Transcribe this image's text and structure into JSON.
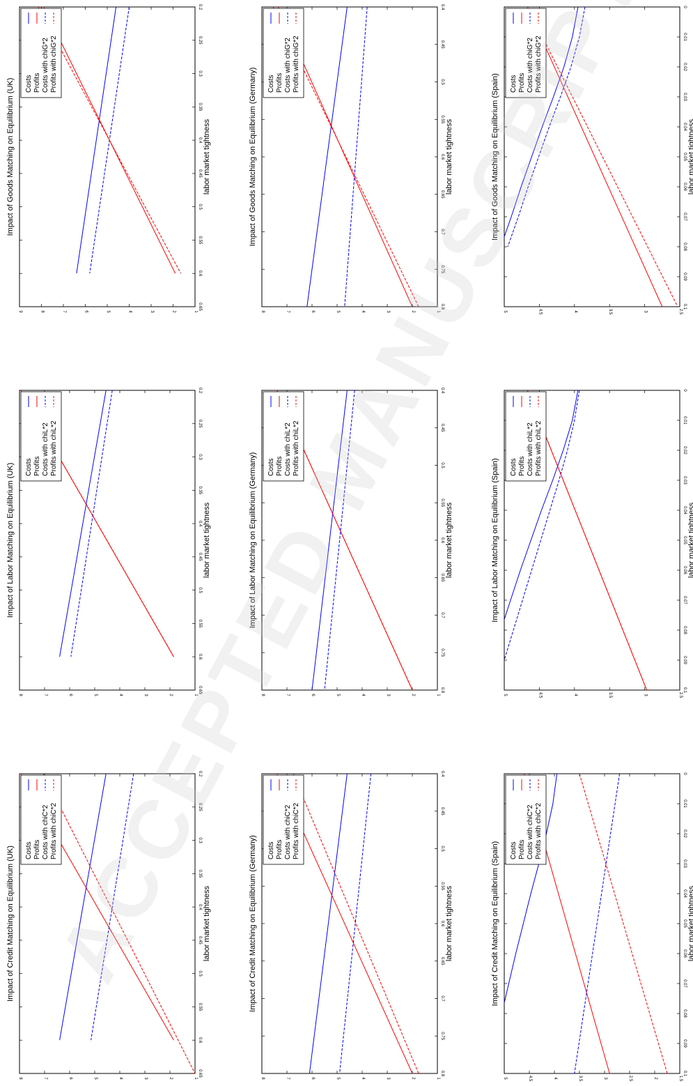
{
  "figure": {
    "colors": {
      "costs": "#0000ff",
      "profits": "#ff0000"
    },
    "watermark_text": "ACCEPTED MANUSCRIPT"
  },
  "chart_data": [
    {
      "id": "goods-uk",
      "type": "line",
      "title": "Impact of Goods Matching on Equilibrium (UK)",
      "xlabel": "labor market tightness",
      "xlim": [
        0.2,
        0.65
      ],
      "ylim": [
        1,
        9
      ],
      "xticks": [
        "0.2",
        "0.25",
        "0.3",
        "0.35",
        "0.4",
        "0.45",
        "0.5",
        "0.55",
        "0.6",
        "0.65"
      ],
      "yticks": [
        "1",
        "2",
        "3",
        "4",
        "5",
        "6",
        "7",
        "8",
        "9"
      ],
      "legend": [
        "Costs",
        "Profits",
        "Costs with chiG*2",
        "Profits with chiG*2"
      ],
      "series": [
        {
          "name": "Costs",
          "color": "#0000ff",
          "dash": false,
          "x": [
            0.2,
            0.6
          ],
          "y": [
            4.6,
            6.4
          ]
        },
        {
          "name": "Profits",
          "color": "#ff0000",
          "dash": false,
          "x": [
            0.2,
            0.6
          ],
          "y": [
            7.9,
            1.9
          ]
        },
        {
          "name": "Costs with chiG*2",
          "color": "#0000ff",
          "dash": true,
          "x": [
            0.2,
            0.6
          ],
          "y": [
            4.0,
            5.8
          ]
        },
        {
          "name": "Profits with chiG*2",
          "color": "#ff0000",
          "dash": true,
          "x": [
            0.2,
            0.6
          ],
          "y": [
            8.15,
            1.65
          ]
        }
      ]
    },
    {
      "id": "goods-germany",
      "type": "line",
      "title": "Impact of Goods Matching on Equilibrium (Germany)",
      "xlabel": "labor market tightness",
      "xlim": [
        0.4,
        0.8
      ],
      "ylim": [
        1,
        8
      ],
      "xticks": [
        "0.4",
        "0.45",
        "0.5",
        "0.55",
        "0.6",
        "0.65",
        "0.7",
        "0.75",
        "0.8"
      ],
      "yticks": [
        "1",
        "2",
        "3",
        "4",
        "5",
        "6",
        "7",
        "8"
      ],
      "legend": [
        "Costs",
        "Profits",
        "Costs with chiG*2",
        "Profits with chiG*2"
      ],
      "series": [
        {
          "name": "Costs",
          "color": "#0000ff",
          "dash": false,
          "x": [
            0.4,
            0.8
          ],
          "y": [
            4.6,
            6.2
          ]
        },
        {
          "name": "Profits",
          "color": "#ff0000",
          "dash": false,
          "x": [
            0.4,
            0.8
          ],
          "y": [
            7.35,
            2.0
          ]
        },
        {
          "name": "Costs with chiG*2",
          "color": "#0000ff",
          "dash": true,
          "x": [
            0.4,
            0.8
          ],
          "y": [
            3.8,
            4.7
          ]
        },
        {
          "name": "Profits with chiG*2",
          "color": "#ff0000",
          "dash": true,
          "x": [
            0.4,
            0.8
          ],
          "y": [
            7.55,
            1.75
          ]
        }
      ]
    },
    {
      "id": "goods-spain",
      "type": "line",
      "title": "Impact of Goods Matching on Equilibrium (Spain)",
      "xlabel": "labor market tightness",
      "xlim": [
        0,
        0.1
      ],
      "ylim": [
        2.5,
        5
      ],
      "xticks": [
        "0",
        "0.01",
        "0.02",
        "0.03",
        "0.04",
        "0.05",
        "0.06",
        "0.07",
        "0.08",
        "0.09",
        "0.1"
      ],
      "yticks": [
        "2.5",
        "3",
        "3.5",
        "4",
        "4.5",
        "5"
      ],
      "legend": [
        "Costs",
        "Profits",
        "Costs with chiG*2",
        "Profits with chiG*2"
      ],
      "series": [
        {
          "name": "Costs",
          "color": "#0000ff",
          "dash": false,
          "x": [
            0,
            0.01,
            0.02,
            0.03,
            0.04,
            0.05,
            0.06,
            0.07,
            0.08
          ],
          "y": [
            3.95,
            4.03,
            4.15,
            4.3,
            4.46,
            4.61,
            4.76,
            4.9,
            5.05
          ]
        },
        {
          "name": "Profits",
          "color": "#ff0000",
          "dash": false,
          "x": [
            0,
            0.1
          ],
          "y": [
            4.67,
            2.75
          ]
        },
        {
          "name": "Costs with chiG*2",
          "color": "#0000ff",
          "dash": true,
          "x": [
            0,
            0.01,
            0.02,
            0.03,
            0.04,
            0.05,
            0.06,
            0.07,
            0.08
          ],
          "y": [
            3.85,
            3.93,
            4.05,
            4.2,
            4.36,
            4.51,
            4.66,
            4.8,
            4.95
          ]
        },
        {
          "name": "Profits with chiG*2",
          "color": "#ff0000",
          "dash": true,
          "x": [
            0,
            0.1
          ],
          "y": [
            4.67,
            2.53
          ]
        }
      ]
    },
    {
      "id": "labor-uk",
      "type": "line",
      "title": "Impact of Labor Matching on Equilibrium (UK)",
      "xlabel": "labor market tightness",
      "xlim": [
        0.2,
        0.65
      ],
      "ylim": [
        1,
        8
      ],
      "xticks": [
        "0.2",
        "0.25",
        "0.3",
        "0.35",
        "0.4",
        "0.45",
        "0.5",
        "0.55",
        "0.6",
        "0.65"
      ],
      "yticks": [
        "1",
        "2",
        "3",
        "4",
        "5",
        "6",
        "7",
        "8"
      ],
      "legend": [
        "Costs",
        "Profits",
        "Costs with chiL*2",
        "Profits with chiL*2"
      ],
      "series": [
        {
          "name": "Costs",
          "color": "#0000ff",
          "dash": false,
          "x": [
            0.2,
            0.6
          ],
          "y": [
            4.55,
            6.4
          ]
        },
        {
          "name": "Profits",
          "color": "#ff0000",
          "dash": false,
          "x": [
            0.2,
            0.6
          ],
          "y": [
            7.95,
            1.85
          ]
        },
        {
          "name": "Costs with chiL*2",
          "color": "#0000ff",
          "dash": true,
          "x": [
            0.2,
            0.6
          ],
          "y": [
            4.3,
            5.95
          ]
        },
        {
          "name": "Profits with chiL*2",
          "color": "#ff0000",
          "dash": true,
          "x": [
            0.2,
            0.6
          ],
          "y": [
            7.95,
            1.85
          ]
        }
      ]
    },
    {
      "id": "labor-germany",
      "type": "line",
      "title": "Impact of Labor Matching on Equilibrium (Germany)",
      "xlabel": "labor market tightness",
      "xlim": [
        0.4,
        0.8
      ],
      "ylim": [
        1,
        8
      ],
      "xticks": [
        "0.4",
        "0.45",
        "0.5",
        "0.55",
        "0.6",
        "0.65",
        "0.7",
        "0.75",
        "0.8"
      ],
      "yticks": [
        "1",
        "2",
        "3",
        "4",
        "5",
        "6",
        "7",
        "8"
      ],
      "legend": [
        "Costs",
        "Profits",
        "Costs with chiL*2",
        "Profits with chiL*2"
      ],
      "series": [
        {
          "name": "Costs",
          "color": "#0000ff",
          "dash": false,
          "x": [
            0.4,
            0.8
          ],
          "y": [
            4.6,
            6.0
          ]
        },
        {
          "name": "Profits",
          "color": "#ff0000",
          "dash": false,
          "x": [
            0.4,
            0.8
          ],
          "y": [
            7.4,
            2.0
          ]
        },
        {
          "name": "Costs with chiL*2",
          "color": "#0000ff",
          "dash": true,
          "x": [
            0.4,
            0.8
          ],
          "y": [
            4.3,
            5.5
          ]
        },
        {
          "name": "Profits with chiL*2",
          "color": "#ff0000",
          "dash": true,
          "x": [
            0.4,
            0.8
          ],
          "y": [
            7.4,
            2.0
          ]
        }
      ]
    },
    {
      "id": "labor-spain",
      "type": "line",
      "title": "Impact of Labor Matching on Equilibrium (Spain)",
      "xlabel": "labor market tightness",
      "xlim": [
        0,
        0.1
      ],
      "ylim": [
        2.5,
        5
      ],
      "xticks": [
        "0",
        "0.01",
        "0.02",
        "0.03",
        "0.04",
        "0.05",
        "0.06",
        "0.07",
        "0.08",
        "0.09",
        "0.1"
      ],
      "yticks": [
        "2.5",
        "3",
        "3.5",
        "4",
        "4.5",
        "5"
      ],
      "legend": [
        "Costs",
        "Profits",
        "Costs with chiL*2",
        "Profits with chiL*2"
      ],
      "series": [
        {
          "name": "Costs",
          "color": "#0000ff",
          "dash": false,
          "x": [
            0,
            0.01,
            0.02,
            0.03,
            0.04,
            0.05,
            0.06,
            0.07,
            0.08
          ],
          "y": [
            3.95,
            4.03,
            4.16,
            4.31,
            4.47,
            4.62,
            4.77,
            4.91,
            5.05
          ]
        },
        {
          "name": "Profits",
          "color": "#ff0000",
          "dash": false,
          "x": [
            0,
            0.1
          ],
          "y": [
            4.67,
            2.97
          ]
        },
        {
          "name": "Costs with chiL*2",
          "color": "#0000ff",
          "dash": true,
          "x": [
            0,
            0.01,
            0.02,
            0.03,
            0.04,
            0.05,
            0.06,
            0.07,
            0.08,
            0.09
          ],
          "y": [
            3.93,
            4.0,
            4.1,
            4.22,
            4.35,
            4.48,
            4.61,
            4.74,
            4.87,
            5.0
          ]
        },
        {
          "name": "Profits with chiL*2",
          "color": "#ff0000",
          "dash": true,
          "x": [
            0,
            0.1
          ],
          "y": [
            4.67,
            2.97
          ]
        }
      ]
    },
    {
      "id": "credit-uk",
      "type": "line",
      "title": "Impact of Credit Matching on Equilibrium (UK)",
      "xlabel": "labor market tightness",
      "xlim": [
        0.2,
        0.65
      ],
      "ylim": [
        1,
        8
      ],
      "xticks": [
        "0.2",
        "0.25",
        "0.3",
        "0.35",
        "0.4",
        "0.45",
        "0.5",
        "0.55",
        "0.6",
        "0.65"
      ],
      "yticks": [
        "1",
        "2",
        "3",
        "4",
        "5",
        "6",
        "7",
        "8"
      ],
      "legend": [
        "Costs",
        "Profits",
        "Costs with chiC*2",
        "Profits with chiC*2"
      ],
      "series": [
        {
          "name": "Costs",
          "color": "#0000ff",
          "dash": false,
          "x": [
            0.2,
            0.6
          ],
          "y": [
            4.55,
            6.4
          ]
        },
        {
          "name": "Profits",
          "color": "#ff0000",
          "dash": false,
          "x": [
            0.2,
            0.6
          ],
          "y": [
            7.95,
            1.85
          ]
        },
        {
          "name": "Costs with chiC*2",
          "color": "#0000ff",
          "dash": true,
          "x": [
            0.2,
            0.6
          ],
          "y": [
            3.45,
            5.15
          ]
        },
        {
          "name": "Profits with chiC*2",
          "color": "#ff0000",
          "dash": true,
          "x": [
            0.2,
            0.65
          ],
          "y": [
            7.05,
            1.0
          ]
        }
      ]
    },
    {
      "id": "credit-germany",
      "type": "line",
      "title": "Impact of Credit Matching on Equilibrium (Germany)",
      "xlabel": "labor market tightness",
      "xlim": [
        0.4,
        0.8
      ],
      "ylim": [
        1,
        8
      ],
      "xticks": [
        "0.4",
        "0.45",
        "0.5",
        "0.55",
        "0.6",
        "0.65",
        "0.7",
        "0.75",
        "0.8"
      ],
      "yticks": [
        "1",
        "2",
        "3",
        "4",
        "5",
        "6",
        "7",
        "8"
      ],
      "legend": [
        "Costs",
        "Profits",
        "Costs with chiC*2",
        "Profits with chiC*2"
      ],
      "series": [
        {
          "name": "Costs",
          "color": "#0000ff",
          "dash": false,
          "x": [
            0.4,
            0.8
          ],
          "y": [
            4.6,
            6.1
          ]
        },
        {
          "name": "Profits",
          "color": "#ff0000",
          "dash": false,
          "x": [
            0.4,
            0.8
          ],
          "y": [
            7.4,
            2.0
          ]
        },
        {
          "name": "Costs with chiC*2",
          "color": "#0000ff",
          "dash": true,
          "x": [
            0.4,
            0.8
          ],
          "y": [
            3.65,
            4.9
          ]
        },
        {
          "name": "Profits with chiC*2",
          "color": "#ff0000",
          "dash": true,
          "x": [
            0.4,
            0.8
          ],
          "y": [
            6.75,
            1.75
          ]
        }
      ]
    },
    {
      "id": "credit-spain",
      "type": "line",
      "title": "Impact of Credit Matching on Equilibrium  (Spain)",
      "xlabel": "labor market tightness",
      "xlim": [
        0,
        0.1
      ],
      "ylim": [
        1.5,
        5
      ],
      "xticks": [
        "0",
        "0.01",
        "0.02",
        "0.03",
        "0.04",
        "0.05",
        "0.06",
        "0.07",
        "0.08",
        "0.09",
        "0.1"
      ],
      "yticks": [
        "1.5",
        "2",
        "2.5",
        "3",
        "3.5",
        "4",
        "4.5",
        "5"
      ],
      "legend": [
        "Costs",
        "Profits",
        "Costs with chiC*2",
        "Profits with chiC*2"
      ],
      "series": [
        {
          "name": "Costs",
          "color": "#0000ff",
          "dash": false,
          "x": [
            0,
            0.01,
            0.02,
            0.03,
            0.04,
            0.05,
            0.06,
            0.07,
            0.08
          ],
          "y": [
            3.95,
            4.03,
            4.16,
            4.31,
            4.47,
            4.62,
            4.77,
            4.91,
            5.05
          ]
        },
        {
          "name": "Profits",
          "color": "#ff0000",
          "dash": false,
          "x": [
            0,
            0.1
          ],
          "y": [
            4.6,
            2.9
          ]
        },
        {
          "name": "Costs with chiC*2",
          "color": "#0000ff",
          "dash": true,
          "x": [
            0,
            0.01,
            0.02,
            0.03,
            0.04,
            0.05,
            0.06,
            0.07,
            0.08,
            0.09,
            0.1
          ],
          "y": [
            2.7,
            2.79,
            2.88,
            2.97,
            3.06,
            3.15,
            3.24,
            3.33,
            3.42,
            3.51,
            3.6
          ]
        },
        {
          "name": "Profits with chiC*2",
          "color": "#ff0000",
          "dash": true,
          "x": [
            0,
            0.1
          ],
          "y": [
            3.5,
            1.75
          ]
        }
      ]
    }
  ]
}
